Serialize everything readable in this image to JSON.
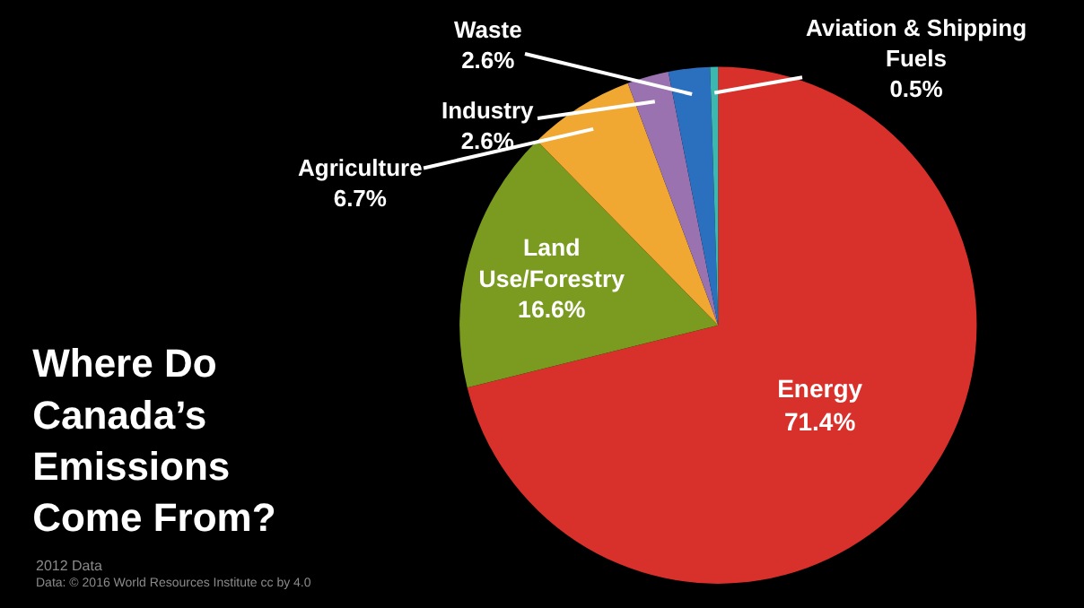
{
  "chart_data": {
    "type": "pie",
    "title": "Where Do Canada’s Emissions Come From?",
    "categories": [
      "Energy",
      "Land Use/Forestry",
      "Agriculture",
      "Industry",
      "Waste",
      "Aviation & Shipping Fuels"
    ],
    "values": [
      71.4,
      16.6,
      6.7,
      2.6,
      2.6,
      0.5
    ],
    "colors": [
      "#d8302a",
      "#7a9b1f",
      "#f0a832",
      "#9a72b0",
      "#2b6fbf",
      "#3cb8b0"
    ],
    "value_labels": [
      "71.4%",
      "16.6%",
      "6.7%",
      "2.6%",
      "2.6%",
      "0.5%"
    ],
    "legend": false,
    "annotations": [
      "2012 Data",
      "Data: © 2016 World Resources Institute cc by 4.0"
    ]
  }
}
